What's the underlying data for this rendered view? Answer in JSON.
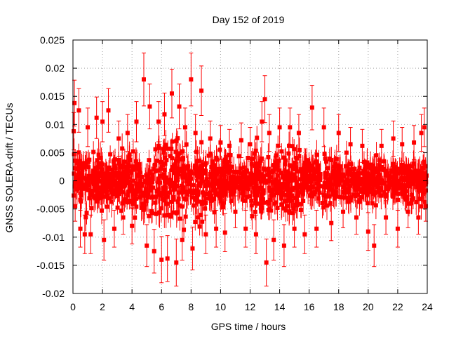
{
  "chart_data": {
    "type": "scatter",
    "title": "Day 152 of 2019",
    "xlabel": "GPS time / hours",
    "ylabel": "GNSS SOLERA-drift / TECUs",
    "xlim": [
      0,
      24
    ],
    "ylim": [
      -0.02,
      0.025
    ],
    "x_ticks": [
      "0",
      "2",
      "4",
      "6",
      "8",
      "10",
      "12",
      "14",
      "16",
      "18",
      "20",
      "22",
      "24"
    ],
    "y_ticks": [
      "-0.02",
      "-0.015",
      "-0.01",
      "-0.005",
      "0",
      "0.005",
      "0.01",
      "0.015",
      "0.02",
      "0.025"
    ],
    "x_tick_values": [
      0,
      2,
      4,
      6,
      8,
      10,
      12,
      14,
      16,
      18,
      20,
      22,
      24
    ],
    "y_tick_values": [
      -0.02,
      -0.015,
      -0.01,
      -0.005,
      0,
      0.005,
      0.01,
      0.015,
      0.02,
      0.025
    ],
    "grid": true,
    "marker_color": "#ff0000",
    "series": [
      {
        "name": "SOLERA drift",
        "x": [
          0.05,
          0.1,
          0.15,
          0.4,
          0.5,
          0.8,
          1.0,
          1.2,
          1.6,
          2.0,
          2.1,
          2.4,
          2.8,
          3.1,
          3.4,
          3.7,
          4.0,
          4.3,
          4.8,
          5.0,
          5.2,
          5.5,
          5.8,
          6.0,
          6.2,
          6.4,
          6.7,
          7.0,
          7.2,
          7.4,
          7.6,
          8.0,
          8.1,
          8.3,
          8.7,
          9.0,
          9.3,
          9.7,
          10.0,
          10.3,
          10.6,
          11.0,
          11.4,
          11.7,
          12.0,
          12.4,
          12.8,
          13.0,
          13.1,
          13.3,
          13.6,
          14.0,
          14.3,
          14.7,
          15.0,
          15.3,
          15.7,
          16.2,
          16.5,
          17.0,
          17.5,
          18.0,
          18.3,
          18.8,
          19.2,
          19.6,
          20.0,
          20.4,
          20.9,
          21.2,
          21.7,
          22.0,
          22.3,
          22.7,
          23.1,
          23.4,
          23.6,
          23.8,
          23.9
        ],
        "y": [
          0.0088,
          0.0138,
          -0.0045,
          0.0125,
          -0.0085,
          -0.0095,
          0.0095,
          -0.0095,
          0.0112,
          0.0105,
          -0.0105,
          0.0125,
          -0.0085,
          0.0075,
          -0.0065,
          0.0085,
          -0.008,
          0.0105,
          0.018,
          -0.0115,
          0.0132,
          -0.0125,
          0.0105,
          -0.014,
          0.0118,
          -0.0138,
          0.0155,
          -0.0145,
          0.0132,
          -0.0105,
          0.0095,
          0.018,
          -0.012,
          0.0085,
          0.016,
          -0.0095,
          0.0075,
          -0.0085,
          0.0068,
          -0.0092,
          0.0062,
          -0.0055,
          0.0072,
          -0.0085,
          0.0065,
          -0.0095,
          0.0105,
          0.0145,
          -0.0145,
          0.0085,
          -0.0105,
          0.0095,
          -0.0115,
          0.0095,
          -0.0085,
          0.0085,
          -0.0095,
          0.013,
          -0.0085,
          0.0095,
          -0.0075,
          0.0085,
          -0.0055,
          0.0065,
          -0.0065,
          0.0062,
          -0.009,
          -0.0115,
          0.0062,
          -0.0065,
          0.0075,
          -0.0085,
          0.0065,
          -0.0055,
          0.0068,
          -0.0065,
          0.0085,
          0.0095,
          -0.0045
        ]
      }
    ]
  }
}
